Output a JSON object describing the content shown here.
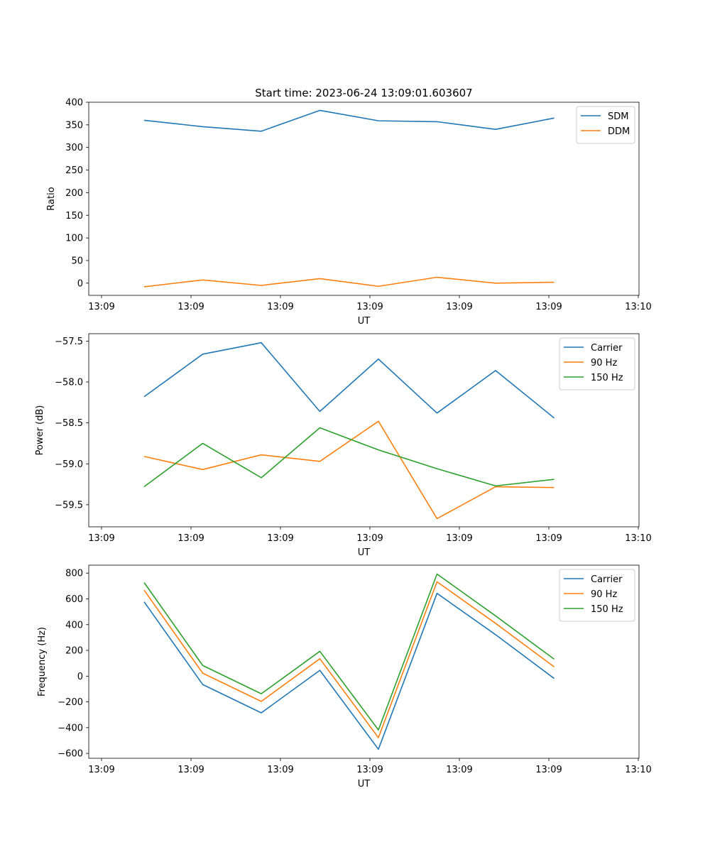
{
  "figure_title": "Start time: 2023-06-24 13:09:01.603607",
  "colors": {
    "blue": "#1f77b4",
    "orange": "#ff7f0e",
    "green": "#2ca02c"
  },
  "chart_data": [
    {
      "type": "line",
      "title": "Start time: 2023-06-24 13:09:01.603607",
      "xlabel": "UT",
      "ylabel": "Ratio",
      "x_tick_labels": [
        "13:09",
        "13:09",
        "13:09",
        "13:09",
        "13:09",
        "13:09",
        "13:09",
        "13:10"
      ],
      "y_ticks": [
        0,
        50,
        100,
        150,
        200,
        250,
        300,
        350,
        400
      ],
      "y_tick_labels": [
        "0",
        "50",
        "100",
        "150",
        "200",
        "250",
        "300",
        "350",
        "400"
      ],
      "ylim": [
        -27,
        400
      ],
      "x_index": [
        0,
        1,
        2,
        3,
        4,
        5,
        6,
        7
      ],
      "legend_position": "top-right",
      "grid": false,
      "series": [
        {
          "name": "SDM",
          "color": "#1f77b4",
          "values": [
            360,
            346,
            336,
            382,
            359,
            357,
            340,
            365
          ]
        },
        {
          "name": "DDM",
          "color": "#ff7f0e",
          "values": [
            -8,
            7,
            -5,
            10,
            -7,
            13,
            0,
            2
          ]
        }
      ]
    },
    {
      "type": "line",
      "xlabel": "UT",
      "ylabel": "Power (dB)",
      "x_tick_labels": [
        "13:09",
        "13:09",
        "13:09",
        "13:09",
        "13:09",
        "13:09",
        "13:09",
        "13:10"
      ],
      "y_ticks": [
        -57.5,
        -58.0,
        -58.5,
        -59.0,
        -59.5
      ],
      "y_tick_labels": [
        "−57.5",
        "−58.0",
        "−58.5",
        "−59.0",
        "−59.5"
      ],
      "ylim": [
        -59.77,
        -57.41
      ],
      "x_index": [
        0,
        1,
        2,
        3,
        4,
        5,
        6,
        7
      ],
      "legend_position": "top-right",
      "grid": false,
      "series": [
        {
          "name": "Carrier",
          "color": "#1f77b4",
          "values": [
            -58.18,
            -57.66,
            -57.52,
            -58.36,
            -57.72,
            -58.38,
            -57.86,
            -58.44
          ]
        },
        {
          "name": "90 Hz",
          "color": "#ff7f0e",
          "values": [
            -58.91,
            -59.07,
            -58.89,
            -58.97,
            -58.48,
            -59.67,
            -59.28,
            -59.29
          ]
        },
        {
          "name": "150 Hz",
          "color": "#2ca02c",
          "values": [
            -59.28,
            -58.75,
            -59.17,
            -58.56,
            -58.83,
            -59.06,
            -59.27,
            -59.19
          ]
        }
      ]
    },
    {
      "type": "line",
      "xlabel": "UT",
      "ylabel": "Frequency (Hz)",
      "x_tick_labels": [
        "13:09",
        "13:09",
        "13:09",
        "13:09",
        "13:09",
        "13:09",
        "13:09",
        "13:10"
      ],
      "y_ticks": [
        800,
        600,
        400,
        200,
        0,
        -200,
        -400,
        -600
      ],
      "y_tick_labels": [
        "800",
        "600",
        "400",
        "200",
        "0",
        "−200",
        "−400",
        "−600"
      ],
      "ylim": [
        -638,
        862
      ],
      "x_index": [
        0,
        1,
        2,
        3,
        4,
        5,
        6,
        7
      ],
      "legend_position": "top-right",
      "grid": false,
      "series": [
        {
          "name": "Carrier",
          "color": "#1f77b4",
          "values": [
            577,
            -65,
            -285,
            45,
            -568,
            643,
            322,
            -18
          ]
        },
        {
          "name": "90 Hz",
          "color": "#ff7f0e",
          "values": [
            668,
            23,
            -196,
            135,
            -478,
            733,
            410,
            72
          ]
        },
        {
          "name": "150 Hz",
          "color": "#2ca02c",
          "values": [
            727,
            83,
            -137,
            193,
            -418,
            793,
            468,
            132
          ]
        }
      ]
    }
  ]
}
